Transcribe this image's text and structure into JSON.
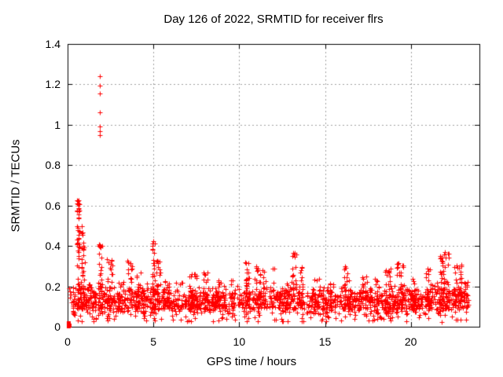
{
  "chart_data": {
    "type": "scatter",
    "title": "Day 126 of 2022, SRMTID for receiver flrs",
    "xlabel": "GPS time / hours",
    "ylabel": "SRMTID / TECUs",
    "xlim": [
      0,
      24
    ],
    "ylim": [
      0,
      1.4
    ],
    "xticks": [
      0,
      5,
      10,
      15,
      20
    ],
    "xtick_labels": [
      "0",
      "5",
      "10",
      "15",
      "20"
    ],
    "yticks": [
      0,
      0.2,
      0.4,
      0.6,
      0.8,
      1.0,
      1.2,
      1.4
    ],
    "ytick_labels": [
      "0",
      "0.2",
      "0.4",
      "0.6",
      "0.8",
      "1",
      "1.2",
      "1.4"
    ],
    "grid": true,
    "grid_color": "#a0a0a0",
    "frame_color": "#000000",
    "marker": {
      "glyph": "+",
      "size": 7,
      "color": "#ff0000"
    },
    "series_name": "SRMTID",
    "outlier_points": [
      [
        1.88,
        1.24
      ],
      [
        1.86,
        1.195
      ],
      [
        1.88,
        1.155
      ],
      [
        1.87,
        1.06
      ],
      [
        1.88,
        0.99
      ],
      [
        1.9,
        0.97
      ],
      [
        1.89,
        0.95
      ]
    ],
    "zero_cluster": [
      [
        0.04,
        0.004
      ],
      [
        0.06,
        0.012
      ],
      [
        0.05,
        0.018
      ],
      [
        0.07,
        0.006
      ],
      [
        0.05,
        0.01
      ]
    ],
    "early_points": [
      [
        0.1,
        0.19
      ],
      [
        0.14,
        0.175
      ],
      [
        0.19,
        0.16
      ],
      [
        0.12,
        0.145
      ],
      [
        0.24,
        0.12
      ],
      [
        0.3,
        0.1
      ],
      [
        0.35,
        0.13
      ],
      [
        0.42,
        0.11
      ]
    ],
    "baseline_band": {
      "x_min": 0.3,
      "x_max": 23.35,
      "y_min": 0.04,
      "y_max": 0.21,
      "count": 1500,
      "spike_fraction": 0.06,
      "spike_extra": 0.05,
      "low_fraction": 0.04,
      "low_y": 0.025
    },
    "bursts": [
      {
        "x": 0.62,
        "w": 0.18,
        "top": 0.63,
        "n": 55
      },
      {
        "x": 0.88,
        "w": 0.22,
        "top": 0.5,
        "n": 45
      },
      {
        "x": 1.35,
        "w": 0.3,
        "top": 0.22,
        "n": 15
      },
      {
        "x": 1.9,
        "w": 0.22,
        "top": 0.42,
        "n": 35
      },
      {
        "x": 2.45,
        "w": 0.35,
        "top": 0.34,
        "n": 30
      },
      {
        "x": 3.1,
        "w": 0.3,
        "top": 0.22,
        "n": 15
      },
      {
        "x": 3.65,
        "w": 0.3,
        "top": 0.33,
        "n": 25
      },
      {
        "x": 4.15,
        "w": 0.35,
        "top": 0.27,
        "n": 20
      },
      {
        "x": 5.0,
        "w": 0.18,
        "top": 0.43,
        "n": 30
      },
      {
        "x": 5.25,
        "w": 0.3,
        "top": 0.33,
        "n": 18
      },
      {
        "x": 5.7,
        "w": 0.4,
        "top": 0.23,
        "n": 15
      },
      {
        "x": 6.5,
        "w": 0.4,
        "top": 0.23,
        "n": 15
      },
      {
        "x": 7.3,
        "w": 0.5,
        "top": 0.27,
        "n": 22
      },
      {
        "x": 8.05,
        "w": 0.3,
        "top": 0.27,
        "n": 18
      },
      {
        "x": 8.8,
        "w": 0.4,
        "top": 0.23,
        "n": 14
      },
      {
        "x": 9.6,
        "w": 0.3,
        "top": 0.24,
        "n": 12
      },
      {
        "x": 10.45,
        "w": 0.3,
        "top": 0.33,
        "n": 26
      },
      {
        "x": 11.05,
        "w": 0.35,
        "top": 0.3,
        "n": 22
      },
      {
        "x": 11.5,
        "w": 0.25,
        "top": 0.28,
        "n": 15
      },
      {
        "x": 12.0,
        "w": 0.1,
        "top": 0.31,
        "n": 4
      },
      {
        "x": 12.7,
        "w": 0.3,
        "top": 0.22,
        "n": 12
      },
      {
        "x": 13.2,
        "w": 0.25,
        "top": 0.37,
        "n": 28
      },
      {
        "x": 13.6,
        "w": 0.2,
        "top": 0.3,
        "n": 15
      },
      {
        "x": 14.5,
        "w": 0.4,
        "top": 0.24,
        "n": 15
      },
      {
        "x": 15.3,
        "w": 0.4,
        "top": 0.22,
        "n": 12
      },
      {
        "x": 16.3,
        "w": 0.4,
        "top": 0.3,
        "n": 22
      },
      {
        "x": 17.3,
        "w": 0.4,
        "top": 0.25,
        "n": 15
      },
      {
        "x": 18.0,
        "w": 0.3,
        "top": 0.24,
        "n": 12
      },
      {
        "x": 18.65,
        "w": 0.4,
        "top": 0.3,
        "n": 25
      },
      {
        "x": 19.4,
        "w": 0.45,
        "top": 0.32,
        "n": 30
      },
      {
        "x": 20.2,
        "w": 0.3,
        "top": 0.24,
        "n": 12
      },
      {
        "x": 21.0,
        "w": 0.35,
        "top": 0.3,
        "n": 20
      },
      {
        "x": 21.95,
        "w": 0.55,
        "top": 0.37,
        "n": 55
      },
      {
        "x": 22.75,
        "w": 0.45,
        "top": 0.31,
        "n": 35
      },
      {
        "x": 23.2,
        "w": 0.2,
        "top": 0.22,
        "n": 12
      }
    ]
  }
}
